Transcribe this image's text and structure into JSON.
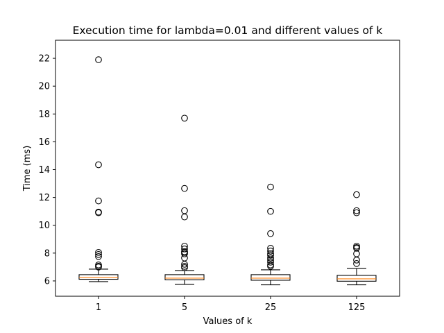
{
  "chart_data": {
    "type": "box",
    "title": "Execution time for lambda=0.01 and different values of k",
    "xlabel": "Values of k",
    "ylabel": "Time (ms)",
    "ylim": [
      4.9,
      23.3
    ],
    "yticks": [
      6,
      8,
      10,
      12,
      14,
      16,
      18,
      20,
      22
    ],
    "categories": [
      "1",
      "5",
      "25",
      "125"
    ],
    "series": [
      {
        "category": "1",
        "whisker_low": 5.95,
        "q1": 6.12,
        "median": 6.25,
        "q3": 6.45,
        "whisker_high": 6.85,
        "outliers": [
          21.9,
          14.35,
          11.75,
          10.95,
          10.9,
          8.05,
          7.9,
          7.75,
          7.15,
          7.05,
          7.0
        ]
      },
      {
        "category": "5",
        "whisker_low": 5.75,
        "q1": 6.08,
        "median": 6.2,
        "q3": 6.45,
        "whisker_high": 6.75,
        "outliers": [
          17.7,
          12.65,
          11.05,
          10.6,
          8.5,
          8.3,
          8.1,
          8.05,
          7.95,
          7.65,
          7.2,
          7.05,
          6.95
        ]
      },
      {
        "category": "25",
        "whisker_low": 5.72,
        "q1": 6.05,
        "median": 6.2,
        "q3": 6.45,
        "whisker_high": 6.8,
        "outliers": [
          12.75,
          11.0,
          9.4,
          8.35,
          8.15,
          7.95,
          7.85,
          7.65,
          7.5,
          7.35,
          7.15,
          7.05
        ]
      },
      {
        "category": "125",
        "whisker_low": 5.72,
        "q1": 5.98,
        "median": 6.15,
        "q3": 6.4,
        "whisker_high": 6.9,
        "outliers": [
          12.2,
          11.05,
          10.9,
          8.5,
          8.4,
          8.35,
          7.95,
          7.5,
          7.25
        ]
      }
    ],
    "colors": {
      "box": "#000000",
      "median": "#ff7f0e",
      "outlier": "#000000"
    }
  }
}
